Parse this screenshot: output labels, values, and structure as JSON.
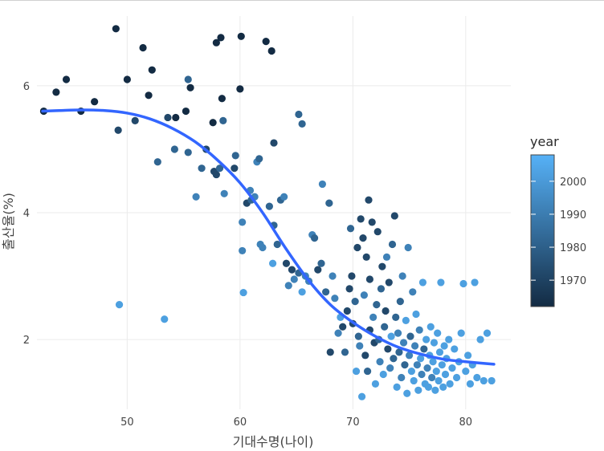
{
  "chart_data": {
    "type": "scatter",
    "title": "",
    "xlabel": "기대수명(나이)",
    "ylabel": "출산율(%)",
    "xlim": [
      42,
      84
    ],
    "ylim": [
      0.9,
      7.1
    ],
    "x_ticks": [
      "50",
      "60",
      "70",
      "80"
    ],
    "y_ticks": [
      "2",
      "4",
      "6"
    ],
    "grid": true,
    "legend": {
      "title": "year",
      "position": "right",
      "ticks": [
        "1970",
        "1980",
        "1990",
        "2000"
      ],
      "range": [
        1962,
        2008
      ]
    },
    "colors": {
      "low": "#132b43",
      "high": "#56b1f7",
      "trend": "#3366ff",
      "grid": "#ebebeb"
    },
    "trend": {
      "type": "smooth",
      "x": [
        42.5,
        44,
        46,
        48,
        50,
        52,
        54,
        56,
        58,
        60,
        62,
        64,
        66,
        68,
        70,
        72,
        74,
        76,
        78,
        80,
        82.5
      ],
      "y": [
        5.6,
        5.61,
        5.62,
        5.61,
        5.57,
        5.48,
        5.33,
        5.12,
        4.83,
        4.47,
        4.0,
        3.45,
        2.95,
        2.55,
        2.27,
        2.05,
        1.88,
        1.77,
        1.69,
        1.65,
        1.61
      ]
    },
    "points": [
      {
        "x": 42.6,
        "y": 5.6,
        "year": 1962
      },
      {
        "x": 43.7,
        "y": 5.9,
        "year": 1962
      },
      {
        "x": 44.6,
        "y": 6.1,
        "year": 1962
      },
      {
        "x": 45.9,
        "y": 5.6,
        "year": 1962
      },
      {
        "x": 47.1,
        "y": 5.75,
        "year": 1962
      },
      {
        "x": 49.0,
        "y": 6.9,
        "year": 1962
      },
      {
        "x": 49.2,
        "y": 5.3,
        "year": 1972
      },
      {
        "x": 50.0,
        "y": 6.1,
        "year": 1962
      },
      {
        "x": 50.7,
        "y": 5.45,
        "year": 1972
      },
      {
        "x": 51.4,
        "y": 6.6,
        "year": 1962
      },
      {
        "x": 51.9,
        "y": 5.85,
        "year": 1962
      },
      {
        "x": 52.2,
        "y": 6.25,
        "year": 1962
      },
      {
        "x": 52.7,
        "y": 4.8,
        "year": 1982
      },
      {
        "x": 53.6,
        "y": 5.5,
        "year": 1972
      },
      {
        "x": 54.2,
        "y": 5.0,
        "year": 1982
      },
      {
        "x": 54.3,
        "y": 5.5,
        "year": 1962
      },
      {
        "x": 55.2,
        "y": 5.6,
        "year": 1962
      },
      {
        "x": 55.4,
        "y": 6.1,
        "year": 1982
      },
      {
        "x": 55.6,
        "y": 5.97,
        "year": 1962
      },
      {
        "x": 55.4,
        "y": 4.95,
        "year": 1982
      },
      {
        "x": 56.1,
        "y": 4.25,
        "year": 1992
      },
      {
        "x": 56.6,
        "y": 4.7,
        "year": 1982
      },
      {
        "x": 57.0,
        "y": 5.0,
        "year": 1972
      },
      {
        "x": 57.6,
        "y": 5.42,
        "year": 1962
      },
      {
        "x": 57.9,
        "y": 6.68,
        "year": 1962
      },
      {
        "x": 58.3,
        "y": 6.76,
        "year": 1962
      },
      {
        "x": 57.9,
        "y": 4.6,
        "year": 1972
      },
      {
        "x": 57.7,
        "y": 4.65,
        "year": 1972
      },
      {
        "x": 58.2,
        "y": 4.7,
        "year": 1982
      },
      {
        "x": 58.4,
        "y": 5.8,
        "year": 1962
      },
      {
        "x": 58.5,
        "y": 5.45,
        "year": 1982
      },
      {
        "x": 58.6,
        "y": 4.3,
        "year": 1992
      },
      {
        "x": 59.5,
        "y": 4.7,
        "year": 1972
      },
      {
        "x": 59.6,
        "y": 4.9,
        "year": 1982
      },
      {
        "x": 60.0,
        "y": 5.95,
        "year": 1962
      },
      {
        "x": 60.1,
        "y": 6.78,
        "year": 1962
      },
      {
        "x": 60.2,
        "y": 3.4,
        "year": 1992
      },
      {
        "x": 60.2,
        "y": 3.85,
        "year": 1992
      },
      {
        "x": 60.3,
        "y": 2.74,
        "year": 2002
      },
      {
        "x": 60.6,
        "y": 4.15,
        "year": 1972
      },
      {
        "x": 60.9,
        "y": 4.35,
        "year": 1992
      },
      {
        "x": 61.0,
        "y": 4.2,
        "year": 1982
      },
      {
        "x": 61.3,
        "y": 4.25,
        "year": 1992
      },
      {
        "x": 61.5,
        "y": 4.8,
        "year": 1992
      },
      {
        "x": 61.7,
        "y": 4.85,
        "year": 1982
      },
      {
        "x": 61.8,
        "y": 3.5,
        "year": 1992
      },
      {
        "x": 62.0,
        "y": 3.45,
        "year": 1992
      },
      {
        "x": 62.3,
        "y": 6.7,
        "year": 1962
      },
      {
        "x": 62.8,
        "y": 6.55,
        "year": 1962
      },
      {
        "x": 63.0,
        "y": 5.1,
        "year": 1972
      },
      {
        "x": 62.6,
        "y": 4.1,
        "year": 1982
      },
      {
        "x": 62.9,
        "y": 3.2,
        "year": 2002
      },
      {
        "x": 63.0,
        "y": 3.8,
        "year": 1982
      },
      {
        "x": 63.3,
        "y": 3.5,
        "year": 1982
      },
      {
        "x": 63.6,
        "y": 4.2,
        "year": 1982
      },
      {
        "x": 63.9,
        "y": 4.25,
        "year": 1992
      },
      {
        "x": 64.1,
        "y": 3.2,
        "year": 1972
      },
      {
        "x": 64.3,
        "y": 2.85,
        "year": 1992
      },
      {
        "x": 64.6,
        "y": 3.1,
        "year": 1972
      },
      {
        "x": 64.8,
        "y": 2.95,
        "year": 1992
      },
      {
        "x": 65.2,
        "y": 5.55,
        "year": 1982
      },
      {
        "x": 65.5,
        "y": 5.4,
        "year": 1982
      },
      {
        "x": 65.2,
        "y": 3.05,
        "year": 1982
      },
      {
        "x": 65.5,
        "y": 2.75,
        "year": 2002
      },
      {
        "x": 65.8,
        "y": 3.0,
        "year": 1992
      },
      {
        "x": 66.1,
        "y": 2.92,
        "year": 1992
      },
      {
        "x": 66.4,
        "y": 3.65,
        "year": 1992
      },
      {
        "x": 66.6,
        "y": 3.6,
        "year": 1982
      },
      {
        "x": 66.9,
        "y": 3.1,
        "year": 1972
      },
      {
        "x": 67.2,
        "y": 3.2,
        "year": 1982
      },
      {
        "x": 67.3,
        "y": 4.45,
        "year": 1992
      },
      {
        "x": 67.6,
        "y": 2.75,
        "year": 1982
      },
      {
        "x": 67.9,
        "y": 4.15,
        "year": 1982
      },
      {
        "x": 68.0,
        "y": 1.8,
        "year": 1972
      },
      {
        "x": 68.2,
        "y": 3.0,
        "year": 1992
      },
      {
        "x": 68.4,
        "y": 2.65,
        "year": 1992
      },
      {
        "x": 68.7,
        "y": 2.1,
        "year": 1992
      },
      {
        "x": 68.9,
        "y": 2.35,
        "year": 2002
      },
      {
        "x": 69.1,
        "y": 2.2,
        "year": 1972
      },
      {
        "x": 69.3,
        "y": 1.8,
        "year": 1982
      },
      {
        "x": 69.5,
        "y": 2.45,
        "year": 1972
      },
      {
        "x": 69.7,
        "y": 2.8,
        "year": 1972
      },
      {
        "x": 69.8,
        "y": 3.75,
        "year": 1982
      },
      {
        "x": 69.9,
        "y": 3.0,
        "year": 1972
      },
      {
        "x": 70.0,
        "y": 2.25,
        "year": 1972
      },
      {
        "x": 70.2,
        "y": 2.6,
        "year": 1982
      },
      {
        "x": 70.3,
        "y": 1.5,
        "year": 2002
      },
      {
        "x": 70.4,
        "y": 3.45,
        "year": 1972
      },
      {
        "x": 70.5,
        "y": 2.05,
        "year": 1982
      },
      {
        "x": 70.6,
        "y": 1.9,
        "year": 1992
      },
      {
        "x": 70.7,
        "y": 3.9,
        "year": 1972
      },
      {
        "x": 70.8,
        "y": 1.1,
        "year": 2002
      },
      {
        "x": 70.9,
        "y": 3.6,
        "year": 1972
      },
      {
        "x": 71.0,
        "y": 2.7,
        "year": 1992
      },
      {
        "x": 71.1,
        "y": 1.75,
        "year": 1972
      },
      {
        "x": 71.2,
        "y": 3.3,
        "year": 1972
      },
      {
        "x": 71.3,
        "y": 1.5,
        "year": 1982
      },
      {
        "x": 71.4,
        "y": 4.2,
        "year": 1972
      },
      {
        "x": 71.5,
        "y": 2.15,
        "year": 1972
      },
      {
        "x": 71.5,
        "y": 2.95,
        "year": 1972
      },
      {
        "x": 71.7,
        "y": 3.85,
        "year": 1972
      },
      {
        "x": 71.8,
        "y": 2.35,
        "year": 1992
      },
      {
        "x": 71.9,
        "y": 1.95,
        "year": 1972
      },
      {
        "x": 72.0,
        "y": 1.3,
        "year": 2002
      },
      {
        "x": 72.1,
        "y": 2.55,
        "year": 1982
      },
      {
        "x": 72.2,
        "y": 3.7,
        "year": 1972
      },
      {
        "x": 72.3,
        "y": 2.0,
        "year": 1982
      },
      {
        "x": 72.4,
        "y": 1.65,
        "year": 1992
      },
      {
        "x": 72.5,
        "y": 2.8,
        "year": 1982
      },
      {
        "x": 72.6,
        "y": 3.15,
        "year": 1972
      },
      {
        "x": 72.7,
        "y": 1.45,
        "year": 2002
      },
      {
        "x": 72.8,
        "y": 2.2,
        "year": 1982
      },
      {
        "x": 72.9,
        "y": 2.45,
        "year": 1972
      },
      {
        "x": 73.0,
        "y": 3.3,
        "year": 1992
      },
      {
        "x": 73.1,
        "y": 1.85,
        "year": 1972
      },
      {
        "x": 73.2,
        "y": 2.9,
        "year": 1972
      },
      {
        "x": 73.3,
        "y": 1.55,
        "year": 1992
      },
      {
        "x": 73.4,
        "y": 2.05,
        "year": 2002
      },
      {
        "x": 73.5,
        "y": 3.5,
        "year": 1982
      },
      {
        "x": 73.6,
        "y": 1.7,
        "year": 1982
      },
      {
        "x": 73.7,
        "y": 3.95,
        "year": 1972
      },
      {
        "x": 73.8,
        "y": 2.35,
        "year": 1982
      },
      {
        "x": 73.9,
        "y": 1.25,
        "year": 2002
      },
      {
        "x": 74.0,
        "y": 2.1,
        "year": 1992
      },
      {
        "x": 74.1,
        "y": 1.8,
        "year": 1982
      },
      {
        "x": 74.2,
        "y": 2.6,
        "year": 1982
      },
      {
        "x": 74.3,
        "y": 1.4,
        "year": 1992
      },
      {
        "x": 74.4,
        "y": 3.0,
        "year": 1992
      },
      {
        "x": 74.5,
        "y": 1.95,
        "year": 1992
      },
      {
        "x": 74.6,
        "y": 1.6,
        "year": 1982
      },
      {
        "x": 74.7,
        "y": 2.3,
        "year": 2002
      },
      {
        "x": 74.8,
        "y": 1.15,
        "year": 2002
      },
      {
        "x": 74.9,
        "y": 3.45,
        "year": 1992
      },
      {
        "x": 75.0,
        "y": 1.75,
        "year": 1992
      },
      {
        "x": 75.1,
        "y": 2.05,
        "year": 1982
      },
      {
        "x": 75.2,
        "y": 1.5,
        "year": 2002
      },
      {
        "x": 75.3,
        "y": 2.75,
        "year": 1992
      },
      {
        "x": 75.4,
        "y": 1.35,
        "year": 2002
      },
      {
        "x": 75.5,
        "y": 1.9,
        "year": 1992
      },
      {
        "x": 75.6,
        "y": 2.4,
        "year": 2002
      },
      {
        "x": 75.7,
        "y": 1.6,
        "year": 1992
      },
      {
        "x": 75.8,
        "y": 1.2,
        "year": 2002
      },
      {
        "x": 75.9,
        "y": 2.15,
        "year": 1992
      },
      {
        "x": 76.0,
        "y": 1.7,
        "year": 2002
      },
      {
        "x": 76.1,
        "y": 1.45,
        "year": 1992
      },
      {
        "x": 76.2,
        "y": 2.9,
        "year": 2002
      },
      {
        "x": 76.3,
        "y": 1.85,
        "year": 1982
      },
      {
        "x": 76.4,
        "y": 1.3,
        "year": 2002
      },
      {
        "x": 76.5,
        "y": 2.0,
        "year": 2002
      },
      {
        "x": 76.6,
        "y": 1.55,
        "year": 1992
      },
      {
        "x": 76.7,
        "y": 1.25,
        "year": 2002
      },
      {
        "x": 76.8,
        "y": 1.75,
        "year": 2002
      },
      {
        "x": 76.9,
        "y": 2.2,
        "year": 2002
      },
      {
        "x": 77.0,
        "y": 1.4,
        "year": 1992
      },
      {
        "x": 77.1,
        "y": 1.65,
        "year": 2002
      },
      {
        "x": 77.2,
        "y": 1.95,
        "year": 2002
      },
      {
        "x": 77.3,
        "y": 1.2,
        "year": 2002
      },
      {
        "x": 77.4,
        "y": 1.5,
        "year": 2002
      },
      {
        "x": 77.5,
        "y": 2.1,
        "year": 2002
      },
      {
        "x": 77.6,
        "y": 1.35,
        "year": 2002
      },
      {
        "x": 77.7,
        "y": 1.8,
        "year": 2002
      },
      {
        "x": 77.8,
        "y": 2.9,
        "year": 2002
      },
      {
        "x": 77.9,
        "y": 1.6,
        "year": 2002
      },
      {
        "x": 78.0,
        "y": 1.25,
        "year": 2002
      },
      {
        "x": 78.1,
        "y": 1.9,
        "year": 2002
      },
      {
        "x": 78.2,
        "y": 1.45,
        "year": 2002
      },
      {
        "x": 78.3,
        "y": 1.7,
        "year": 2002
      },
      {
        "x": 78.5,
        "y": 2.0,
        "year": 2002
      },
      {
        "x": 78.6,
        "y": 1.3,
        "year": 2002
      },
      {
        "x": 78.8,
        "y": 1.55,
        "year": 2002
      },
      {
        "x": 79.0,
        "y": 1.85,
        "year": 2002
      },
      {
        "x": 79.2,
        "y": 1.4,
        "year": 2002
      },
      {
        "x": 79.4,
        "y": 1.65,
        "year": 2002
      },
      {
        "x": 79.6,
        "y": 2.1,
        "year": 2002
      },
      {
        "x": 79.8,
        "y": 2.88,
        "year": 2002
      },
      {
        "x": 80.0,
        "y": 1.5,
        "year": 2002
      },
      {
        "x": 80.2,
        "y": 1.75,
        "year": 2002
      },
      {
        "x": 80.4,
        "y": 1.3,
        "year": 2002
      },
      {
        "x": 80.6,
        "y": 1.6,
        "year": 2002
      },
      {
        "x": 80.8,
        "y": 2.9,
        "year": 2002
      },
      {
        "x": 81.0,
        "y": 1.4,
        "year": 2002
      },
      {
        "x": 81.3,
        "y": 2.0,
        "year": 2002
      },
      {
        "x": 81.6,
        "y": 1.35,
        "year": 2002
      },
      {
        "x": 81.9,
        "y": 2.1,
        "year": 2002
      },
      {
        "x": 82.3,
        "y": 1.35,
        "year": 2002
      },
      {
        "x": 49.3,
        "y": 2.55,
        "year": 2002
      },
      {
        "x": 53.3,
        "y": 2.32,
        "year": 2002
      }
    ]
  }
}
